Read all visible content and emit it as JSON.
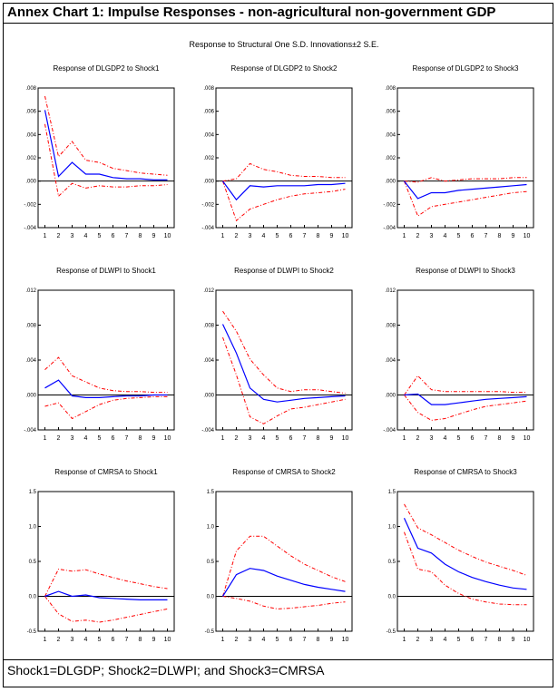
{
  "page": {
    "title": "Annex Chart 1: Impulse Responses - non-agricultural non-government GDP",
    "footer": "Shock1=DLGDP; Shock2=DLWPI; and Shock3=CMRSA"
  },
  "colors": {
    "response": "#0000ff",
    "band": "#ff0000",
    "axis": "#000000"
  },
  "chart_data": {
    "type": "line",
    "title": "Response to Structural One S.D. Innovations±2 S.E.",
    "x": [
      1,
      2,
      3,
      4,
      5,
      6,
      7,
      8,
      9,
      10
    ],
    "rows": [
      {
        "ylim": [
          -0.004,
          0.008
        ],
        "yticks": [
          -0.004,
          -0.002,
          0.0,
          0.002,
          0.004,
          0.006,
          0.008
        ],
        "ytick_labels": [
          "-.004",
          "-.002",
          ".000",
          ".002",
          ".004",
          ".006",
          ".008"
        ],
        "panels": [
          {
            "title": "Response of DLGDP2 to Shock1",
            "response": [
              0.0061,
              0.0004,
              0.0016,
              0.0006,
              0.0006,
              0.0003,
              0.0002,
              0.0002,
              0.0001,
              0.0001
            ],
            "upper": [
              0.0073,
              0.0021,
              0.0034,
              0.0018,
              0.0016,
              0.0011,
              0.0009,
              0.0007,
              0.0006,
              0.0005
            ],
            "lower": [
              0.0049,
              -0.0013,
              -0.0002,
              -0.0006,
              -0.0004,
              -0.0005,
              -0.0005,
              -0.0004,
              -0.0004,
              -0.0003
            ]
          },
          {
            "title": "Response of DLGDP2 to Shock2",
            "response": [
              0.0,
              -0.0016,
              -0.0004,
              -0.0005,
              -0.0004,
              -0.0004,
              -0.0004,
              -0.0003,
              -0.0003,
              -0.0002
            ],
            "upper": [
              0.0,
              0.0002,
              0.0015,
              0.001,
              0.0008,
              0.0005,
              0.0004,
              0.0004,
              0.0003,
              0.0003
            ],
            "lower": [
              0.0,
              -0.0034,
              -0.0024,
              -0.002,
              -0.0016,
              -0.0013,
              -0.0011,
              -0.001,
              -0.0009,
              -0.0007
            ]
          },
          {
            "title": "Response of DLGDP2 to Shock3",
            "response": [
              0.0,
              -0.0015,
              -0.001,
              -0.001,
              -0.0008,
              -0.0007,
              -0.0006,
              -0.0005,
              -0.0004,
              -0.0003
            ],
            "upper": [
              0.0,
              -0.0001,
              0.0003,
              0.0,
              0.0001,
              0.0002,
              0.0002,
              0.0002,
              0.0003,
              0.0003
            ],
            "lower": [
              0.0,
              -0.003,
              -0.0022,
              -0.002,
              -0.0018,
              -0.0016,
              -0.0014,
              -0.0012,
              -0.001,
              -0.0009
            ]
          }
        ]
      },
      {
        "ylim": [
          -0.004,
          0.012
        ],
        "yticks": [
          -0.004,
          0.0,
          0.004,
          0.008,
          0.012
        ],
        "ytick_labels": [
          "-.004",
          ".000",
          ".004",
          ".008",
          ".012"
        ],
        "panels": [
          {
            "title": "Response of DLWPI to Shock1",
            "response": [
              0.0008,
              0.0017,
              -0.0001,
              -0.0003,
              -0.0003,
              -0.0002,
              -0.0001,
              -0.0001,
              0.0,
              0.0
            ],
            "upper": [
              0.0029,
              0.0043,
              0.0022,
              0.0015,
              0.0008,
              0.0005,
              0.0004,
              0.0004,
              0.0003,
              0.0003
            ],
            "lower": [
              -0.0013,
              -0.0009,
              -0.0027,
              -0.0019,
              -0.0011,
              -0.0006,
              -0.0004,
              -0.0003,
              -0.0002,
              -0.0002
            ]
          },
          {
            "title": "Response of DLWPI to Shock2",
            "response": [
              0.0081,
              0.0048,
              0.0008,
              -0.0005,
              -0.0008,
              -0.0006,
              -0.0004,
              -0.0003,
              -0.0002,
              -0.0001
            ],
            "upper": [
              0.0096,
              0.0073,
              0.0041,
              0.0023,
              0.0008,
              0.0004,
              0.0006,
              0.0006,
              0.0004,
              0.0002
            ],
            "lower": [
              0.0066,
              0.0023,
              -0.0025,
              -0.0033,
              -0.0024,
              -0.0016,
              -0.0014,
              -0.0011,
              -0.0008,
              -0.0005
            ]
          },
          {
            "title": "Response of DLWPI to Shock3",
            "response": [
              0.0,
              0.0001,
              -0.0011,
              -0.0011,
              -0.0009,
              -0.0007,
              -0.0005,
              -0.0004,
              -0.0003,
              -0.0002
            ],
            "upper": [
              0.0,
              0.0022,
              0.0006,
              0.0004,
              0.0004,
              0.0004,
              0.0004,
              0.0004,
              0.0003,
              0.0003
            ],
            "lower": [
              0.0,
              -0.002,
              -0.0029,
              -0.0027,
              -0.0022,
              -0.0017,
              -0.0013,
              -0.0011,
              -0.0009,
              -0.0007
            ]
          }
        ]
      },
      {
        "ylim": [
          -0.5,
          1.5
        ],
        "yticks": [
          -0.5,
          0.0,
          0.5,
          1.0,
          1.5
        ],
        "ytick_labels": [
          "-0.5",
          "0.0",
          "0.5",
          "1.0",
          "1.5"
        ],
        "panels": [
          {
            "title": "Response of CMRSA to Shock1",
            "response": [
              0.0,
              0.07,
              0.0,
              0.02,
              -0.02,
              -0.03,
              -0.04,
              -0.05,
              -0.05,
              -0.05
            ],
            "upper": [
              0.0,
              0.39,
              0.36,
              0.38,
              0.32,
              0.27,
              0.22,
              0.18,
              0.14,
              0.11
            ],
            "lower": [
              0.0,
              -0.25,
              -0.36,
              -0.34,
              -0.37,
              -0.34,
              -0.3,
              -0.26,
              -0.22,
              -0.18
            ]
          },
          {
            "title": "Response of CMRSA to Shock2",
            "response": [
              0.0,
              0.31,
              0.4,
              0.37,
              0.29,
              0.23,
              0.17,
              0.13,
              0.1,
              0.07
            ],
            "upper": [
              0.0,
              0.65,
              0.86,
              0.86,
              0.72,
              0.58,
              0.46,
              0.37,
              0.28,
              0.21
            ],
            "lower": [
              0.0,
              -0.03,
              -0.07,
              -0.14,
              -0.18,
              -0.17,
              -0.15,
              -0.13,
              -0.1,
              -0.08
            ]
          },
          {
            "title": "Response of CMRSA to Shock3",
            "response": [
              1.12,
              0.69,
              0.62,
              0.46,
              0.35,
              0.27,
              0.21,
              0.16,
              0.12,
              0.1
            ],
            "upper": [
              1.32,
              0.98,
              0.88,
              0.77,
              0.66,
              0.57,
              0.49,
              0.43,
              0.37,
              0.3
            ],
            "lower": [
              0.92,
              0.39,
              0.35,
              0.16,
              0.04,
              -0.04,
              -0.08,
              -0.11,
              -0.12,
              -0.12
            ]
          }
        ]
      }
    ]
  }
}
